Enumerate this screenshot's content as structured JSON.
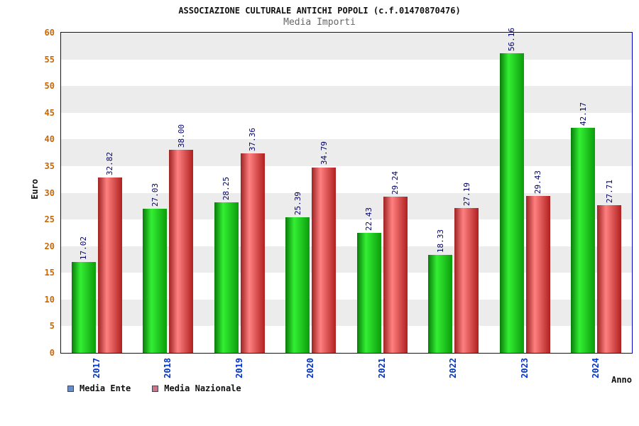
{
  "header": {
    "title": "ASSOCIAZIONE CULTURALE ANTICHI POPOLI (c.f.01470870476)",
    "subtitle": "Media Importi"
  },
  "chart_data": {
    "type": "bar",
    "title": "ASSOCIAZIONE CULTURALE ANTICHI POPOLI (c.f.01470870476)",
    "subtitle": "Media Importi",
    "categories": [
      "2017",
      "2018",
      "2019",
      "2020",
      "2021",
      "2022",
      "2023",
      "2024"
    ],
    "series": [
      {
        "name": "Media Ente",
        "values": [
          17.02,
          27.03,
          28.25,
          25.39,
          22.43,
          18.33,
          56.16,
          42.17
        ]
      },
      {
        "name": "Media Nazionale",
        "values": [
          32.82,
          38.0,
          37.36,
          34.79,
          29.24,
          27.19,
          29.43,
          27.71
        ]
      }
    ],
    "xlabel": "Anno",
    "ylabel": "Euro",
    "ylim": [
      0,
      60
    ],
    "ytick_step": 5,
    "grid": "alternating-horizontal-bands",
    "value_labels": "rotated-90-above-bars",
    "legend_position": "bottom-left",
    "legend": [
      {
        "label": "Media Ente",
        "marker_color": "#6a8cc7"
      },
      {
        "label": "Media Nazionale",
        "marker_color": "#c9758a"
      }
    ]
  },
  "colors": {
    "title": "#111111",
    "subtitle": "#666666",
    "plot_border": "#0000cc",
    "band_gray": "#ececec",
    "y_tick_label": "#cc6600",
    "x_tick_label": "#0033cc",
    "value_label": "#000066",
    "bar_green_gradient": [
      "#0a7a0a",
      "#33ef33",
      "#0c9c0c"
    ],
    "bar_red_gradient": [
      "#9d2222",
      "#ff8080",
      "#b02020"
    ]
  }
}
